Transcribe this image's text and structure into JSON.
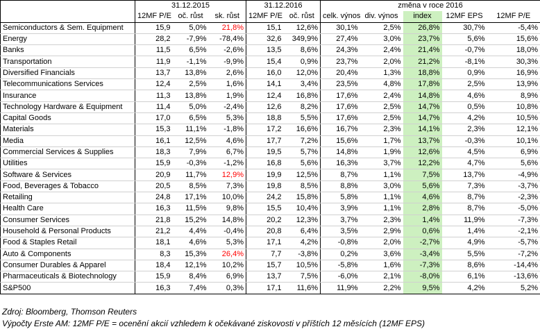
{
  "headers": {
    "group_2015": "31.12.2015",
    "group_2016": "31.12.2016",
    "group_change": "změna v roce 2016",
    "columns": [
      "12MF P/E",
      "oč. růst",
      "sk. růst",
      "12MF P/E",
      "oč. růst",
      "celk. výnos",
      "div. výnos",
      "index",
      "12MF EPS",
      "12MF P/E"
    ]
  },
  "highlight_color": "#cdf0c0",
  "alert_color": "#ff0000",
  "rows": [
    {
      "name": "Semiconductors & Sem. Equipment",
      "v": [
        "15,9",
        "5,0%",
        "21,8%",
        "15,1",
        "12,6%",
        "30,1%",
        "2,5%",
        "26,8%",
        "30,7%",
        "-5,4%"
      ],
      "red": 2
    },
    {
      "name": "Energy",
      "v": [
        "28,2",
        "-7,9%",
        "-78,4%",
        "32,6",
        "349,9%",
        "27,4%",
        "3,0%",
        "23,7%",
        "5,6%",
        "15,6%"
      ]
    },
    {
      "name": "Banks",
      "v": [
        "11,5",
        "6,5%",
        "-2,6%",
        "13,5",
        "8,6%",
        "24,3%",
        "2,4%",
        "21,4%",
        "-0,7%",
        "18,0%"
      ]
    },
    {
      "name": "Transportation",
      "v": [
        "11,9",
        "-1,1%",
        "-9,9%",
        "15,4",
        "0,9%",
        "23,7%",
        "2,0%",
        "21,2%",
        "-8,1%",
        "30,3%"
      ]
    },
    {
      "name": "Diversified Financials",
      "v": [
        "13,7",
        "13,8%",
        "2,6%",
        "16,0",
        "12,0%",
        "20,4%",
        "1,3%",
        "18,8%",
        "0,9%",
        "16,9%"
      ]
    },
    {
      "name": "Telecommunications Services",
      "v": [
        "12,4",
        "2,5%",
        "1,6%",
        "14,1",
        "3,4%",
        "23,5%",
        "4,8%",
        "17,8%",
        "2,5%",
        "13,9%"
      ]
    },
    {
      "name": "Insurance",
      "v": [
        "11,3",
        "13,8%",
        "1,9%",
        "12,4",
        "16,8%",
        "17,6%",
        "2,4%",
        "14,8%",
        "4,6%",
        "8,9%"
      ]
    },
    {
      "name": "Technology Hardware & Equipment",
      "v": [
        "11,4",
        "5,0%",
        "-2,4%",
        "12,6",
        "8,2%",
        "17,6%",
        "2,5%",
        "14,7%",
        "0,5%",
        "10,8%"
      ]
    },
    {
      "name": "Capital Goods",
      "v": [
        "17,0",
        "6,5%",
        "5,3%",
        "18,8",
        "5,5%",
        "17,6%",
        "2,5%",
        "14,7%",
        "4,2%",
        "10,5%"
      ]
    },
    {
      "name": "Materials",
      "v": [
        "15,3",
        "11,1%",
        "-1,8%",
        "17,2",
        "16,6%",
        "16,7%",
        "2,3%",
        "14,1%",
        "2,3%",
        "12,1%"
      ]
    },
    {
      "name": "Media",
      "v": [
        "16,1",
        "12,5%",
        "4,6%",
        "17,7",
        "7,2%",
        "15,6%",
        "1,7%",
        "13,7%",
        "-0,3%",
        "10,1%"
      ]
    },
    {
      "name": "Commercial Services & Supplies",
      "v": [
        "18,3",
        "7,9%",
        "6,7%",
        "19,5",
        "5,7%",
        "14,8%",
        "1,9%",
        "12,6%",
        "4,5%",
        "6,9%"
      ]
    },
    {
      "name": "Utilities",
      "v": [
        "15,9",
        "-0,3%",
        "-1,2%",
        "16,8",
        "5,6%",
        "16,3%",
        "3,7%",
        "12,2%",
        "4,7%",
        "5,6%"
      ]
    },
    {
      "name": "Software & Services",
      "v": [
        "20,9",
        "11,7%",
        "12,9%",
        "19,9",
        "12,5%",
        "8,7%",
        "1,1%",
        "7,5%",
        "13,7%",
        "-4,9%"
      ],
      "red": 2
    },
    {
      "name": "Food, Beverages & Tobacco",
      "v": [
        "20,5",
        "8,5%",
        "7,3%",
        "19,8",
        "8,5%",
        "8,8%",
        "3,0%",
        "5,6%",
        "7,3%",
        "-3,7%"
      ]
    },
    {
      "name": "Retailing",
      "v": [
        "24,8",
        "17,1%",
        "10,0%",
        "24,2",
        "15,8%",
        "5,8%",
        "1,1%",
        "4,6%",
        "8,7%",
        "-2,3%"
      ]
    },
    {
      "name": "Health Care",
      "v": [
        "16,3",
        "11,5%",
        "9,8%",
        "15,5",
        "10,4%",
        "3,9%",
        "1,1%",
        "2,8%",
        "8,7%",
        "-5,0%"
      ]
    },
    {
      "name": "Consumer Services",
      "v": [
        "21,8",
        "15,2%",
        "14,8%",
        "20,2",
        "12,3%",
        "3,7%",
        "2,3%",
        "1,4%",
        "11,9%",
        "-7,3%"
      ]
    },
    {
      "name": "Household & Personal Products",
      "v": [
        "21,2",
        "4,4%",
        "-0,4%",
        "20,8",
        "6,4%",
        "3,5%",
        "2,9%",
        "0,6%",
        "1,4%",
        "-2,1%"
      ]
    },
    {
      "name": "Food & Staples Retail",
      "v": [
        "18,1",
        "4,6%",
        "5,3%",
        "17,1",
        "4,2%",
        "-0,8%",
        "2,0%",
        "-2,7%",
        "4,9%",
        "-5,7%"
      ]
    },
    {
      "name": "Auto & Components",
      "v": [
        "8,3",
        "15,3%",
        "26,4%",
        "7,7",
        "-3,8%",
        "0,2%",
        "3,6%",
        "-3,4%",
        "5,5%",
        "-7,2%"
      ],
      "red": 2
    },
    {
      "name": "Consumer Durables & Apparel",
      "v": [
        "18,4",
        "12,1%",
        "10,2%",
        "15,7",
        "10,5%",
        "-5,8%",
        "1,6%",
        "-7,3%",
        "8,6%",
        "-14,4%"
      ]
    },
    {
      "name": "Pharmaceuticals & Biotechnology",
      "v": [
        "15,9",
        "8,4%",
        "6,9%",
        "13,7",
        "7,5%",
        "-6,0%",
        "2,1%",
        "-8,0%",
        "6,1%",
        "-13,6%"
      ]
    }
  ],
  "total": {
    "name": "S&P500",
    "v": [
      "16,3",
      "7,4%",
      "0,3%",
      "17,1",
      "11,6%",
      "11,9%",
      "2,2%",
      "9,5%",
      "4,2%",
      "5,2%"
    ]
  },
  "notes": {
    "source": "Zdroj: Bloomberg, Thomson Reuters",
    "explanation": "Výpočty Erste AM: 12MF P/E = ocenění akcií vzhledem k očekávané ziskovosti v příštích 12 měsících (12MF EPS)"
  }
}
